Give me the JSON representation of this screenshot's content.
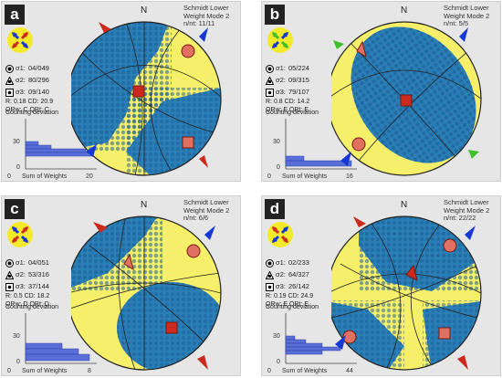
{
  "panels": [
    {
      "letter": "a",
      "header": {
        "line1": "Schmidt Lower",
        "line2": "Weight Mode 2",
        "line3": "n/nt: 11/11"
      },
      "north": "N",
      "sigma1": {
        "label": "σ1:",
        "value": "04/049"
      },
      "sigma2": {
        "label": "σ2:",
        "value": "80/296"
      },
      "sigma3": {
        "label": "σ3:",
        "value": "09/140"
      },
      "r_cd": "R: 0.18  CD: 20.9",
      "qr": "QRw: C  QRt: C",
      "cd_title": "Counting deviation",
      "hist": {
        "y_ticks": [
          "30",
          "0"
        ],
        "x_left": "0",
        "x_label": "Sum of Weights",
        "x_right": "20"
      }
    },
    {
      "letter": "b",
      "header": {
        "line1": "Schmidt Lower",
        "line2": "Weight Mode 2",
        "line3": "n/nt: 5/5"
      },
      "north": "N",
      "sigma1": {
        "label": "σ1:",
        "value": "05/224"
      },
      "sigma2": {
        "label": "σ2:",
        "value": "09/315"
      },
      "sigma3": {
        "label": "σ3:",
        "value": "79/107"
      },
      "r_cd": "R: 0.8  CD: 14.2",
      "qr": "QRw: E  QRt: E",
      "cd_title": "Counting deviation",
      "hist": {
        "y_ticks": [
          "30",
          "0"
        ],
        "x_left": "0",
        "x_label": "Sum of Weights",
        "x_right": "16"
      }
    },
    {
      "letter": "c",
      "header": {
        "line1": "Schmidt Lower",
        "line2": "Weight Mode 2",
        "line3": "n/nt: 6/6"
      },
      "north": "N",
      "sigma1": {
        "label": "σ1:",
        "value": "04/051"
      },
      "sigma2": {
        "label": "σ2:",
        "value": "53/316"
      },
      "sigma3": {
        "label": "σ3:",
        "value": "37/144"
      },
      "r_cd": "R: 0.5  CD: 18.2",
      "qr": "QRw: D  QRt: D",
      "cd_title": "Counting deviation",
      "hist": {
        "y_ticks": [
          "30",
          "0"
        ],
        "x_left": "0",
        "x_label": "Sum of Weights",
        "x_right": "8"
      }
    },
    {
      "letter": "d",
      "header": {
        "line1": "Schmidt Lower",
        "line2": "Weight Mode 2",
        "line3": "n/nt: 22/22"
      },
      "north": "N",
      "sigma1": {
        "label": "σ1:",
        "value": "02/233"
      },
      "sigma2": {
        "label": "σ2:",
        "value": "64/327"
      },
      "sigma3": {
        "label": "σ3:",
        "value": "26/142"
      },
      "r_cd": "R: 0.19  CD: 24.9",
      "qr": "QRw: E  QRt: E",
      "cd_title": "Counting deviation",
      "hist": {
        "y_ticks": [
          "30",
          "0"
        ],
        "x_left": "0",
        "x_label": "Sum of Weights",
        "x_right": "44"
      }
    }
  ],
  "colors": {
    "panel_bg": "#e6e6e6",
    "net_yellow": "#f5ef6a",
    "net_blue": "#2a7fb7",
    "dot_blue": "#1e5f96",
    "arrow_red": "#cc2a1e",
    "arrow_blue": "#1537d6",
    "arrow_green": "#3fbf2a",
    "histogram": "#5a6ed8"
  },
  "icons": [
    "compression-arrow-icon",
    "extension-arrow-icon"
  ]
}
